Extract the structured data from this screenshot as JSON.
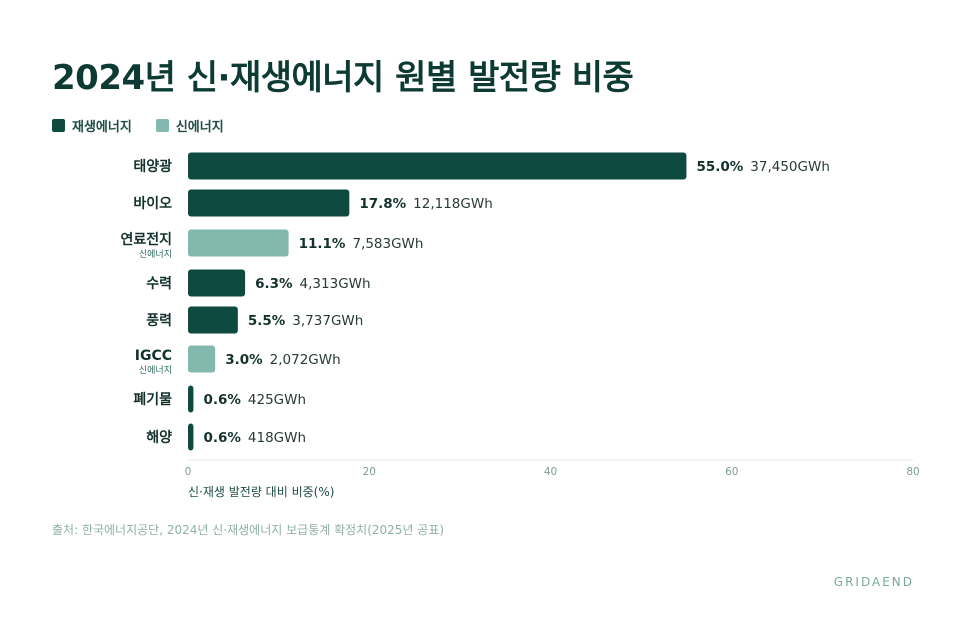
{
  "header": {
    "title": "2024년 신·재생에너지 원별 발전량 비중"
  },
  "legend": [
    {
      "label": "재생에너지",
      "color": "#0e4a3f"
    },
    {
      "label": "신에너지",
      "color": "#82b8ae"
    }
  ],
  "chart_data": {
    "type": "bar",
    "orientation": "horizontal",
    "xlabel": "신·재생 발전량 대비 비중(%)",
    "xlim": [
      0,
      80
    ],
    "xticks": [
      0,
      20,
      40,
      60,
      80
    ],
    "grid": false,
    "legend_position": "top-left",
    "categories": [
      {
        "label": "태양광",
        "sub": "",
        "value": 55.0,
        "value_label": "55.0%",
        "gwh": "37,450GWh",
        "group": "재생에너지"
      },
      {
        "label": "바이오",
        "sub": "",
        "value": 17.8,
        "value_label": "17.8%",
        "gwh": "12,118GWh",
        "group": "재생에너지"
      },
      {
        "label": "연료전지",
        "sub": "신에너지",
        "value": 11.1,
        "value_label": "11.1%",
        "gwh": "7,583GWh",
        "group": "신에너지"
      },
      {
        "label": "수력",
        "sub": "",
        "value": 6.3,
        "value_label": "6.3%",
        "gwh": "4,313GWh",
        "group": "재생에너지"
      },
      {
        "label": "풍력",
        "sub": "",
        "value": 5.5,
        "value_label": "5.5%",
        "gwh": "3,737GWh",
        "group": "재생에너지"
      },
      {
        "label": "IGCC",
        "sub": "신에너지",
        "value": 3.0,
        "value_label": "3.0%",
        "gwh": "2,072GWh",
        "group": "신에너지"
      },
      {
        "label": "폐기물",
        "sub": "",
        "value": 0.6,
        "value_label": "0.6%",
        "gwh": "425GWh",
        "group": "재생에너지"
      },
      {
        "label": "해양",
        "sub": "",
        "value": 0.6,
        "value_label": "0.6%",
        "gwh": "418GWh",
        "group": "재생에너지"
      }
    ]
  },
  "footer": {
    "source": "출처: 한국에너지공단, 2024년 신·재생에너지 보급통계 확정치(2025년 공표)",
    "brand": "GRIDAEND"
  }
}
